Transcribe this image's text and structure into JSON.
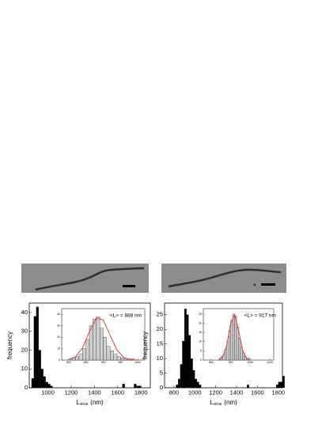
{
  "chart_data": [
    {
      "type": "histogram",
      "ylabel": "frequency",
      "xlabel": {
        "main": "L",
        "sub": "virus",
        "unit": "(nm)"
      },
      "bins": [
        860,
        880,
        900,
        920,
        940,
        960,
        980,
        1000,
        1020,
        1040,
        1060,
        1080,
        1100,
        1120,
        1140,
        1160,
        1180,
        1200,
        1220,
        1240,
        1260,
        1280,
        1300,
        1320,
        1340,
        1360,
        1380,
        1400,
        1420,
        1440,
        1460,
        1480,
        1500,
        1520,
        1540,
        1560,
        1580,
        1600,
        1620,
        1640,
        1660,
        1680,
        1700,
        1720,
        1740,
        1760,
        1780,
        1800
      ],
      "values": [
        5,
        38,
        43,
        20,
        10,
        6,
        3,
        2,
        1,
        0,
        0,
        0,
        0,
        0,
        0,
        0,
        0,
        0,
        0,
        0,
        0,
        0,
        0,
        0,
        0,
        0,
        0,
        0,
        0,
        0,
        0,
        0,
        0,
        0,
        0,
        0,
        0,
        0,
        0,
        2,
        0,
        0,
        0,
        0,
        2,
        1,
        1
      ],
      "color": "#000000",
      "xlim": [
        840,
        1880
      ],
      "xticks": [
        1000,
        1200,
        1400,
        1600,
        1800
      ],
      "ylim": [
        0,
        45
      ],
      "yticks": [
        0,
        10,
        20,
        30,
        40
      ]
    },
    {
      "type": "histogram",
      "annotation": "<L> = 888 nm",
      "bins": [
        800,
        810,
        820,
        830,
        840,
        850,
        860,
        870,
        880,
        890,
        900,
        910,
        920,
        930,
        940,
        950,
        960,
        970,
        980,
        990
      ],
      "values": [
        1,
        2,
        3,
        5,
        10,
        18,
        30,
        36,
        38,
        28,
        20,
        12,
        8,
        5,
        3,
        2,
        1,
        1,
        1
      ],
      "color": "#d9d9d9",
      "xlim": [
        780,
        1020
      ],
      "xticks": [
        800,
        850,
        900,
        950,
        1000
      ],
      "ylim": [
        0,
        45
      ],
      "yticks": [
        0,
        10,
        20,
        30,
        40
      ],
      "fit": {
        "color": "#e03030",
        "x": [
          800,
          820,
          840,
          860,
          880,
          900,
          920,
          940,
          960,
          980,
          1000
        ],
        "y": [
          0.5,
          2.9,
          10.6,
          24.6,
          36.7,
          35.1,
          21.5,
          8.5,
          2.1,
          0.3,
          0
        ]
      }
    },
    {
      "type": "histogram",
      "ylabel": "frequency",
      "xlabel": {
        "main": "L",
        "sub": "virus",
        "unit": "(nm)"
      },
      "bins": [
        820,
        840,
        860,
        880,
        900,
        920,
        940,
        960,
        980,
        1000,
        1020,
        1040,
        1060,
        1080,
        1100,
        1120,
        1140,
        1160,
        1180,
        1200,
        1220,
        1240,
        1260,
        1280,
        1300,
        1320,
        1340,
        1360,
        1380,
        1400,
        1420,
        1440,
        1460,
        1480,
        1500,
        1520,
        1540,
        1560,
        1580,
        1600,
        1620,
        1640,
        1660,
        1680,
        1700,
        1720,
        1740,
        1760,
        1780,
        1800,
        1820,
        1840,
        1860
      ],
      "values": [
        1,
        3,
        8,
        16,
        27,
        25,
        18,
        10,
        6,
        3,
        2,
        1,
        0,
        0,
        0,
        0,
        0,
        0,
        0,
        0,
        0,
        0,
        0,
        0,
        0,
        0,
        0,
        0,
        0,
        0,
        0,
        0,
        0,
        0,
        1,
        0,
        0,
        0,
        0,
        0,
        0,
        0,
        0,
        0,
        0,
        0,
        0,
        0,
        1,
        2,
        2,
        4
      ],
      "color": "#000000",
      "xlim": [
        710,
        1840
      ],
      "xticks": [
        800,
        1000,
        1200,
        1400,
        1600,
        1800
      ],
      "ylim": [
        0,
        29
      ],
      "yticks": [
        0,
        5,
        10,
        15,
        20,
        25
      ]
    },
    {
      "type": "histogram",
      "annotation": "<L> = 917 nm",
      "bins": [
        840,
        850,
        860,
        870,
        880,
        890,
        900,
        910,
        920,
        930,
        940,
        950,
        960,
        970,
        980,
        990,
        1000
      ],
      "values": [
        1,
        2,
        3,
        6,
        10,
        16,
        22,
        25,
        24,
        18,
        12,
        7,
        4,
        2,
        1,
        1
      ],
      "color": "#d9d9d9",
      "xlim": [
        760,
        1120
      ],
      "xticks": [
        800,
        900,
        1000,
        1100
      ],
      "ylim": [
        0,
        28
      ],
      "yticks": [
        0,
        5,
        10,
        15,
        20,
        25
      ],
      "fit": {
        "color": "#e03030",
        "x": [
          840,
          860,
          880,
          900,
          920,
          940,
          960,
          980,
          1000
        ],
        "y": [
          0.2,
          1.9,
          8.3,
          19.9,
          24.8,
          16.4,
          5.7,
          1.0,
          0.1
        ]
      }
    }
  ]
}
